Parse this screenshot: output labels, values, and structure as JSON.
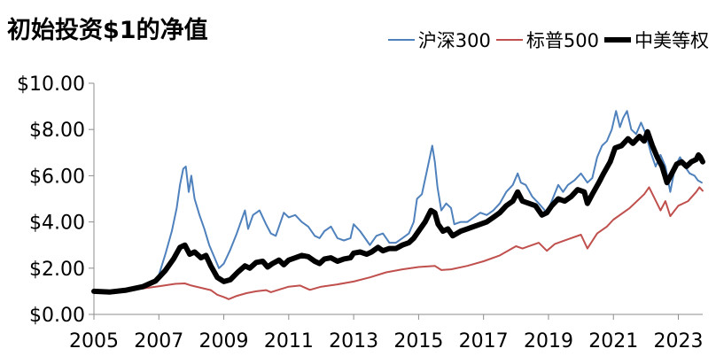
{
  "chart_data": {
    "type": "line",
    "title": "初始投资$1的净值",
    "xlabel": "",
    "ylabel": "",
    "xlim": [
      2005,
      2023.75
    ],
    "ylim": [
      0,
      10
    ],
    "xticks": [
      "2005",
      "2007",
      "2009",
      "2011",
      "2013",
      "2015",
      "2017",
      "2019",
      "2021",
      "2023"
    ],
    "xtick_values": [
      2005,
      2007,
      2009,
      2011,
      2013,
      2015,
      2017,
      2019,
      2021,
      2023
    ],
    "yticks": [
      "$0.00",
      "$2.00",
      "$4.00",
      "$6.00",
      "$8.00",
      "$10.00"
    ],
    "ytick_values": [
      0,
      2,
      4,
      6,
      8,
      10
    ],
    "grid": false,
    "legend_position": "top-right",
    "series": [
      {
        "name": "沪深300",
        "color": "#4f81bd",
        "line_weight": "thin",
        "points": [
          [
            2005.0,
            1.0
          ],
          [
            2005.3,
            0.96
          ],
          [
            2005.6,
            0.93
          ],
          [
            2005.9,
            0.97
          ],
          [
            2006.2,
            1.05
          ],
          [
            2006.5,
            1.2
          ],
          [
            2006.8,
            1.4
          ],
          [
            2007.0,
            1.7
          ],
          [
            2007.2,
            2.6
          ],
          [
            2007.4,
            3.6
          ],
          [
            2007.55,
            4.6
          ],
          [
            2007.65,
            5.6
          ],
          [
            2007.75,
            6.3
          ],
          [
            2007.83,
            6.4
          ],
          [
            2007.92,
            5.3
          ],
          [
            2008.0,
            6.0
          ],
          [
            2008.1,
            5.0
          ],
          [
            2008.25,
            4.3
          ],
          [
            2008.4,
            3.7
          ],
          [
            2008.55,
            3.0
          ],
          [
            2008.7,
            2.5
          ],
          [
            2008.85,
            2.0
          ],
          [
            2009.0,
            2.2
          ],
          [
            2009.2,
            2.8
          ],
          [
            2009.4,
            3.5
          ],
          [
            2009.55,
            4.1
          ],
          [
            2009.65,
            4.5
          ],
          [
            2009.75,
            3.7
          ],
          [
            2009.9,
            4.3
          ],
          [
            2010.1,
            4.5
          ],
          [
            2010.3,
            3.9
          ],
          [
            2010.45,
            3.5
          ],
          [
            2010.6,
            3.4
          ],
          [
            2010.75,
            4.0
          ],
          [
            2010.85,
            4.4
          ],
          [
            2011.0,
            4.2
          ],
          [
            2011.2,
            4.3
          ],
          [
            2011.4,
            4.0
          ],
          [
            2011.6,
            3.8
          ],
          [
            2011.8,
            3.4
          ],
          [
            2011.95,
            3.3
          ],
          [
            2012.1,
            3.6
          ],
          [
            2012.3,
            3.8
          ],
          [
            2012.5,
            3.3
          ],
          [
            2012.7,
            3.2
          ],
          [
            2012.9,
            3.3
          ],
          [
            2013.0,
            3.9
          ],
          [
            2013.2,
            3.6
          ],
          [
            2013.4,
            3.2
          ],
          [
            2013.5,
            3.0
          ],
          [
            2013.7,
            3.4
          ],
          [
            2013.9,
            3.5
          ],
          [
            2014.1,
            3.1
          ],
          [
            2014.3,
            3.1
          ],
          [
            2014.5,
            3.3
          ],
          [
            2014.7,
            3.5
          ],
          [
            2014.85,
            4.0
          ],
          [
            2014.95,
            5.0
          ],
          [
            2015.1,
            5.2
          ],
          [
            2015.3,
            6.5
          ],
          [
            2015.42,
            7.3
          ],
          [
            2015.5,
            6.6
          ],
          [
            2015.58,
            5.5
          ],
          [
            2015.7,
            4.5
          ],
          [
            2015.85,
            4.8
          ],
          [
            2016.0,
            4.6
          ],
          [
            2016.1,
            3.9
          ],
          [
            2016.3,
            4.0
          ],
          [
            2016.5,
            4.0
          ],
          [
            2016.7,
            4.2
          ],
          [
            2016.9,
            4.4
          ],
          [
            2017.1,
            4.3
          ],
          [
            2017.3,
            4.5
          ],
          [
            2017.5,
            4.8
          ],
          [
            2017.7,
            5.3
          ],
          [
            2017.9,
            5.6
          ],
          [
            2018.05,
            6.1
          ],
          [
            2018.15,
            5.7
          ],
          [
            2018.3,
            5.6
          ],
          [
            2018.5,
            5.1
          ],
          [
            2018.7,
            4.8
          ],
          [
            2018.95,
            4.4
          ],
          [
            2019.1,
            4.9
          ],
          [
            2019.3,
            5.6
          ],
          [
            2019.45,
            5.3
          ],
          [
            2019.6,
            5.6
          ],
          [
            2019.8,
            5.8
          ],
          [
            2020.0,
            6.1
          ],
          [
            2020.2,
            5.7
          ],
          [
            2020.35,
            5.9
          ],
          [
            2020.5,
            6.8
          ],
          [
            2020.65,
            7.3
          ],
          [
            2020.8,
            7.5
          ],
          [
            2020.95,
            8.0
          ],
          [
            2021.08,
            8.8
          ],
          [
            2021.2,
            8.1
          ],
          [
            2021.3,
            8.5
          ],
          [
            2021.42,
            8.8
          ],
          [
            2021.55,
            8.0
          ],
          [
            2021.7,
            7.8
          ],
          [
            2021.85,
            8.3
          ],
          [
            2022.0,
            7.8
          ],
          [
            2022.15,
            7.0
          ],
          [
            2022.3,
            6.4
          ],
          [
            2022.45,
            6.9
          ],
          [
            2022.6,
            6.4
          ],
          [
            2022.75,
            5.3
          ],
          [
            2022.9,
            6.4
          ],
          [
            2023.05,
            6.8
          ],
          [
            2023.2,
            6.4
          ],
          [
            2023.35,
            6.1
          ],
          [
            2023.5,
            6.0
          ],
          [
            2023.6,
            5.8
          ],
          [
            2023.72,
            5.7
          ]
        ]
      },
      {
        "name": "标普500",
        "color": "#c0504d",
        "line_weight": "thin",
        "points": [
          [
            2005.0,
            1.0
          ],
          [
            2005.5,
            1.02
          ],
          [
            2006.0,
            1.07
          ],
          [
            2006.5,
            1.12
          ],
          [
            2007.0,
            1.22
          ],
          [
            2007.5,
            1.32
          ],
          [
            2007.8,
            1.34
          ],
          [
            2008.0,
            1.25
          ],
          [
            2008.3,
            1.15
          ],
          [
            2008.6,
            1.05
          ],
          [
            2008.8,
            0.85
          ],
          [
            2009.0,
            0.75
          ],
          [
            2009.15,
            0.66
          ],
          [
            2009.4,
            0.8
          ],
          [
            2009.7,
            0.92
          ],
          [
            2010.0,
            1.0
          ],
          [
            2010.3,
            1.05
          ],
          [
            2010.45,
            0.96
          ],
          [
            2010.7,
            1.07
          ],
          [
            2011.0,
            1.2
          ],
          [
            2011.35,
            1.25
          ],
          [
            2011.65,
            1.06
          ],
          [
            2012.0,
            1.2
          ],
          [
            2012.5,
            1.3
          ],
          [
            2013.0,
            1.42
          ],
          [
            2013.5,
            1.6
          ],
          [
            2014.0,
            1.82
          ],
          [
            2014.5,
            1.95
          ],
          [
            2015.0,
            2.05
          ],
          [
            2015.5,
            2.1
          ],
          [
            2015.7,
            1.92
          ],
          [
            2016.0,
            1.95
          ],
          [
            2016.5,
            2.1
          ],
          [
            2017.0,
            2.3
          ],
          [
            2017.5,
            2.55
          ],
          [
            2018.0,
            2.95
          ],
          [
            2018.2,
            2.85
          ],
          [
            2018.7,
            3.1
          ],
          [
            2018.95,
            2.75
          ],
          [
            2019.2,
            3.05
          ],
          [
            2019.6,
            3.25
          ],
          [
            2020.0,
            3.45
          ],
          [
            2020.2,
            2.85
          ],
          [
            2020.5,
            3.5
          ],
          [
            2020.8,
            3.8
          ],
          [
            2021.0,
            4.1
          ],
          [
            2021.5,
            4.6
          ],
          [
            2021.95,
            5.2
          ],
          [
            2022.1,
            5.5
          ],
          [
            2022.45,
            4.5
          ],
          [
            2022.6,
            4.9
          ],
          [
            2022.75,
            4.25
          ],
          [
            2023.0,
            4.7
          ],
          [
            2023.3,
            4.9
          ],
          [
            2023.55,
            5.3
          ],
          [
            2023.65,
            5.5
          ],
          [
            2023.75,
            5.35
          ]
        ]
      },
      {
        "name": "中美等权",
        "color": "#000000",
        "line_weight": "thick",
        "points": [
          [
            2005.0,
            1.0
          ],
          [
            2005.5,
            0.97
          ],
          [
            2006.0,
            1.05
          ],
          [
            2006.5,
            1.2
          ],
          [
            2006.9,
            1.45
          ],
          [
            2007.2,
            1.9
          ],
          [
            2007.45,
            2.4
          ],
          [
            2007.65,
            2.9
          ],
          [
            2007.8,
            3.0
          ],
          [
            2007.95,
            2.6
          ],
          [
            2008.1,
            2.7
          ],
          [
            2008.3,
            2.45
          ],
          [
            2008.45,
            2.55
          ],
          [
            2008.6,
            2.1
          ],
          [
            2008.8,
            1.6
          ],
          [
            2009.0,
            1.42
          ],
          [
            2009.2,
            1.5
          ],
          [
            2009.45,
            1.85
          ],
          [
            2009.65,
            2.1
          ],
          [
            2009.8,
            2.0
          ],
          [
            2010.0,
            2.25
          ],
          [
            2010.2,
            2.3
          ],
          [
            2010.35,
            2.05
          ],
          [
            2010.5,
            2.2
          ],
          [
            2010.7,
            2.35
          ],
          [
            2010.85,
            2.15
          ],
          [
            2011.0,
            2.35
          ],
          [
            2011.2,
            2.45
          ],
          [
            2011.4,
            2.55
          ],
          [
            2011.6,
            2.5
          ],
          [
            2011.8,
            2.3
          ],
          [
            2011.95,
            2.2
          ],
          [
            2012.1,
            2.4
          ],
          [
            2012.3,
            2.45
          ],
          [
            2012.5,
            2.3
          ],
          [
            2012.7,
            2.4
          ],
          [
            2012.9,
            2.45
          ],
          [
            2013.0,
            2.65
          ],
          [
            2013.2,
            2.7
          ],
          [
            2013.4,
            2.6
          ],
          [
            2013.55,
            2.7
          ],
          [
            2013.75,
            2.9
          ],
          [
            2013.9,
            2.75
          ],
          [
            2014.1,
            2.85
          ],
          [
            2014.3,
            2.85
          ],
          [
            2014.5,
            3.0
          ],
          [
            2014.7,
            3.1
          ],
          [
            2014.85,
            3.3
          ],
          [
            2015.0,
            3.6
          ],
          [
            2015.2,
            4.0
          ],
          [
            2015.38,
            4.5
          ],
          [
            2015.5,
            4.4
          ],
          [
            2015.6,
            3.9
          ],
          [
            2015.75,
            3.6
          ],
          [
            2015.9,
            3.7
          ],
          [
            2016.05,
            3.4
          ],
          [
            2016.3,
            3.6
          ],
          [
            2016.5,
            3.7
          ],
          [
            2016.7,
            3.8
          ],
          [
            2016.9,
            3.9
          ],
          [
            2017.1,
            4.0
          ],
          [
            2017.3,
            4.2
          ],
          [
            2017.5,
            4.4
          ],
          [
            2017.7,
            4.7
          ],
          [
            2017.9,
            4.9
          ],
          [
            2018.05,
            5.3
          ],
          [
            2018.2,
            4.9
          ],
          [
            2018.4,
            4.8
          ],
          [
            2018.6,
            4.7
          ],
          [
            2018.8,
            4.3
          ],
          [
            2018.95,
            4.4
          ],
          [
            2019.1,
            4.7
          ],
          [
            2019.3,
            5.0
          ],
          [
            2019.5,
            4.9
          ],
          [
            2019.7,
            5.1
          ],
          [
            2019.9,
            5.4
          ],
          [
            2020.1,
            5.3
          ],
          [
            2020.2,
            4.8
          ],
          [
            2020.35,
            5.2
          ],
          [
            2020.55,
            5.7
          ],
          [
            2020.7,
            6.1
          ],
          [
            2020.9,
            6.6
          ],
          [
            2021.05,
            7.2
          ],
          [
            2021.25,
            7.3
          ],
          [
            2021.45,
            7.6
          ],
          [
            2021.6,
            7.4
          ],
          [
            2021.8,
            7.7
          ],
          [
            2021.95,
            7.5
          ],
          [
            2022.05,
            7.9
          ],
          [
            2022.2,
            7.3
          ],
          [
            2022.35,
            6.8
          ],
          [
            2022.5,
            6.4
          ],
          [
            2022.65,
            5.7
          ],
          [
            2022.8,
            6.1
          ],
          [
            2022.95,
            6.5
          ],
          [
            2023.1,
            6.6
          ],
          [
            2023.25,
            6.4
          ],
          [
            2023.4,
            6.6
          ],
          [
            2023.55,
            6.7
          ],
          [
            2023.62,
            6.9
          ],
          [
            2023.68,
            6.8
          ],
          [
            2023.75,
            6.6
          ]
        ]
      }
    ]
  }
}
